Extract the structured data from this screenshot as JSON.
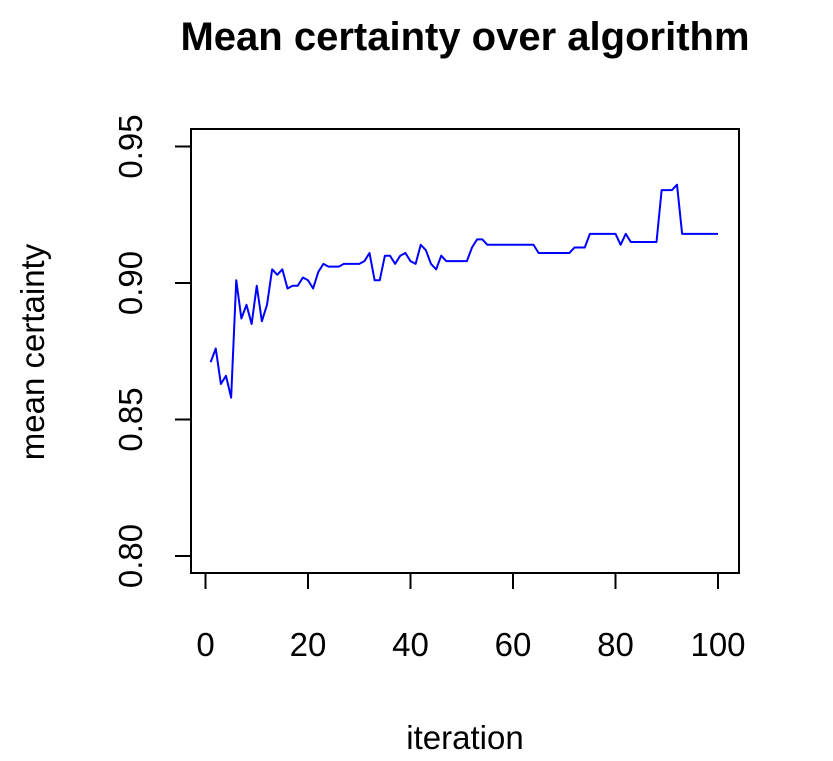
{
  "chart_data": {
    "type": "line",
    "title": "Mean certainty over algorithm",
    "xlabel": "iteration",
    "ylabel": "mean certainty",
    "xlim": [
      1,
      100
    ],
    "ylim": [
      0.8,
      0.95
    ],
    "x_ticks": [
      0,
      20,
      40,
      60,
      80,
      100
    ],
    "y_ticks": [
      0.8,
      0.85,
      0.9,
      0.95
    ],
    "y_tick_labels": [
      "0.80",
      "0.85",
      "0.90",
      "0.95"
    ],
    "grid": false,
    "legend": "none",
    "line_color": "#0000ff",
    "series": [
      {
        "x": [
          1,
          2,
          3,
          4,
          5,
          6,
          7,
          8,
          9,
          10,
          11,
          12,
          13,
          14,
          15,
          16,
          17,
          18,
          19,
          20,
          21,
          22,
          23,
          24,
          25,
          26,
          27,
          28,
          29,
          30,
          31,
          32,
          33,
          34,
          35,
          36,
          37,
          38,
          39,
          40,
          41,
          42,
          43,
          44,
          45,
          46,
          47,
          48,
          49,
          50,
          51,
          52,
          53,
          54,
          55,
          56,
          57,
          58,
          59,
          60,
          61,
          62,
          63,
          64,
          65,
          66,
          67,
          68,
          69,
          70,
          71,
          72,
          73,
          74,
          75,
          76,
          77,
          78,
          79,
          80,
          81,
          82,
          83,
          84,
          85,
          86,
          87,
          88,
          89,
          90,
          91,
          92,
          93,
          94,
          95,
          96,
          97,
          98,
          99,
          100
        ],
        "y": [
          0.871,
          0.876,
          0.863,
          0.866,
          0.858,
          0.901,
          0.887,
          0.892,
          0.885,
          0.899,
          0.886,
          0.892,
          0.905,
          0.903,
          0.905,
          0.898,
          0.899,
          0.899,
          0.902,
          0.901,
          0.898,
          0.904,
          0.907,
          0.906,
          0.906,
          0.906,
          0.907,
          0.907,
          0.907,
          0.907,
          0.908,
          0.911,
          0.901,
          0.901,
          0.91,
          0.91,
          0.907,
          0.91,
          0.911,
          0.908,
          0.907,
          0.914,
          0.912,
          0.907,
          0.905,
          0.91,
          0.908,
          0.908,
          0.908,
          0.908,
          0.908,
          0.913,
          0.916,
          0.916,
          0.914,
          0.914,
          0.914,
          0.914,
          0.914,
          0.914,
          0.914,
          0.914,
          0.914,
          0.914,
          0.911,
          0.911,
          0.911,
          0.911,
          0.911,
          0.911,
          0.911,
          0.913,
          0.913,
          0.913,
          0.918,
          0.918,
          0.918,
          0.918,
          0.918,
          0.918,
          0.914,
          0.918,
          0.915,
          0.915,
          0.915,
          0.915,
          0.915,
          0.915,
          0.934,
          0.934,
          0.934,
          0.936,
          0.918,
          0.918,
          0.918,
          0.918,
          0.918,
          0.918,
          0.918,
          0.918
        ]
      }
    ]
  }
}
